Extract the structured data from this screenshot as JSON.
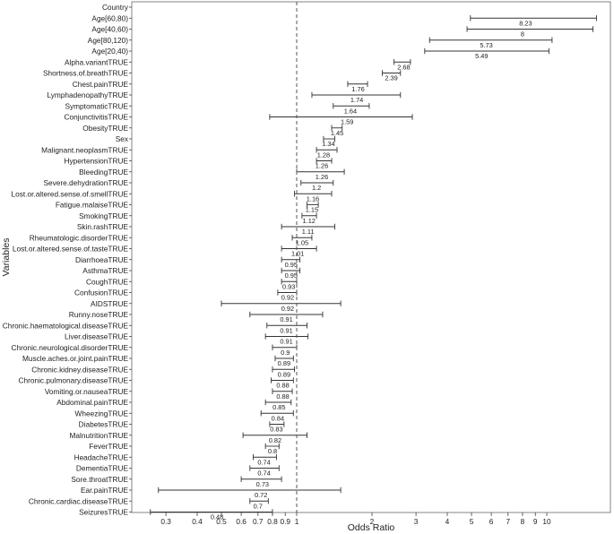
{
  "chart_data": {
    "type": "forest",
    "xlabel": "Odds Ratio",
    "ylabel": "Variables",
    "x_scale": "log",
    "xlim": [
      0.22,
      18
    ],
    "reference_line": 1,
    "grid": false,
    "x_ticks": [
      {
        "value": 0.3,
        "label": "0.3"
      },
      {
        "value": 0.4,
        "label": "0.4"
      },
      {
        "value": 0.5,
        "label": "0.5"
      },
      {
        "value": 0.6,
        "label": "0.6"
      },
      {
        "value": 0.7,
        "label": "0.7"
      },
      {
        "value": 0.8,
        "label": "0.8"
      },
      {
        "value": 0.9,
        "label": "0.9"
      },
      {
        "value": 1,
        "label": "1"
      },
      {
        "value": 2,
        "label": "2"
      },
      {
        "value": 3,
        "label": "3"
      },
      {
        "value": 4,
        "label": "4"
      },
      {
        "value": 5,
        "label": "5"
      },
      {
        "value": 6,
        "label": "6"
      },
      {
        "value": 7,
        "label": "7"
      },
      {
        "value": 8,
        "label": "8"
      },
      {
        "value": 9,
        "label": "9"
      },
      {
        "value": 10,
        "label": "10"
      }
    ],
    "rows": [
      {
        "label": "Country",
        "or": null,
        "lo": null,
        "hi": null,
        "or_label": ""
      },
      {
        "label": "Age[60,80)",
        "or": 8.23,
        "lo": 4.95,
        "hi": 15.8,
        "or_label": "8.23"
      },
      {
        "label": "Age[40,60)",
        "or": 8,
        "lo": 4.8,
        "hi": 15.3,
        "or_label": "8"
      },
      {
        "label": "Age[80,120)",
        "or": 5.73,
        "lo": 3.4,
        "hi": 10.5,
        "or_label": "5.73"
      },
      {
        "label": "Age[20,40)",
        "or": 5.49,
        "lo": 3.25,
        "hi": 10.2,
        "or_label": "5.49"
      },
      {
        "label": "Alpha.variantTRUE",
        "or": 2.68,
        "lo": 2.45,
        "hi": 2.85,
        "or_label": "2.68"
      },
      {
        "label": "Shortness.of.breathTRUE",
        "or": 2.39,
        "lo": 2.2,
        "hi": 2.6,
        "or_label": "2.39"
      },
      {
        "label": "Chest.painTRUE",
        "or": 1.76,
        "lo": 1.6,
        "hi": 1.92,
        "or_label": "1.76"
      },
      {
        "label": "LymphadenopathyTRUE",
        "or": 1.74,
        "lo": 1.15,
        "hi": 2.6,
        "or_label": "1.74"
      },
      {
        "label": "SymptomaticTRUE",
        "or": 1.64,
        "lo": 1.4,
        "hi": 1.95,
        "or_label": "1.64"
      },
      {
        "label": "ConjunctivitisTRUE",
        "or": 1.59,
        "lo": 0.78,
        "hi": 2.9,
        "or_label": "1.59"
      },
      {
        "label": "ObesityTRUE",
        "or": 1.45,
        "lo": 1.38,
        "hi": 1.52,
        "or_label": "1.45"
      },
      {
        "label": "Sex",
        "or": 1.34,
        "lo": 1.28,
        "hi": 1.42,
        "or_label": "1.34"
      },
      {
        "label": "Malignant.neoplasmTRUE",
        "or": 1.28,
        "lo": 1.2,
        "hi": 1.45,
        "or_label": "1.28"
      },
      {
        "label": "HypertensionTRUE",
        "or": 1.26,
        "lo": 1.2,
        "hi": 1.38,
        "or_label": "1.26"
      },
      {
        "label": "BleedingTRUE",
        "or": 1.26,
        "lo": 1.0,
        "hi": 1.55,
        "or_label": "1.26"
      },
      {
        "label": "Severe.dehydrationTRUE",
        "or": 1.2,
        "lo": 1.04,
        "hi": 1.4,
        "or_label": "1.2"
      },
      {
        "label": "Lost.or.altered.sense.of.smellTRUE",
        "or": 1.16,
        "lo": 0.98,
        "hi": 1.38,
        "or_label": "1.16"
      },
      {
        "label": "Fatigue.malaiseTRUE",
        "or": 1.15,
        "lo": 1.1,
        "hi": 1.22,
        "or_label": "1.15"
      },
      {
        "label": "SmokingTRUE",
        "or": 1.12,
        "lo": 1.05,
        "hi": 1.2,
        "or_label": "1.12"
      },
      {
        "label": "Skin.rashTRUE",
        "or": 1.11,
        "lo": 0.87,
        "hi": 1.42,
        "or_label": "1.11"
      },
      {
        "label": "Rheumatologic.disorderTRUE",
        "or": 1.05,
        "lo": 0.96,
        "hi": 1.15,
        "or_label": "1.05"
      },
      {
        "label": "Lost.or.altered.sense.of.tasteTRUE",
        "or": 1.01,
        "lo": 0.87,
        "hi": 1.2,
        "or_label": "1.01"
      },
      {
        "label": "DiarrhoeaTRUE",
        "or": 0.95,
        "lo": 0.87,
        "hi": 1.03,
        "or_label": "0.95"
      },
      {
        "label": "AsthmaTRUE",
        "or": 0.95,
        "lo": 0.87,
        "hi": 1.03,
        "or_label": "0.95"
      },
      {
        "label": "CoughTRUE",
        "or": 0.93,
        "lo": 0.87,
        "hi": 1.0,
        "or_label": "0.93"
      },
      {
        "label": "ConfusionTRUE",
        "or": 0.92,
        "lo": 0.84,
        "hi": 1.0,
        "or_label": "0.92"
      },
      {
        "label": "AIDSTRUE",
        "or": 0.92,
        "lo": 0.5,
        "hi": 1.5,
        "or_label": "0.92"
      },
      {
        "label": "Runny.noseTRUE",
        "or": 0.91,
        "lo": 0.65,
        "hi": 1.27,
        "or_label": "0.91"
      },
      {
        "label": "Chronic.haematological.diseaseTRUE",
        "or": 0.91,
        "lo": 0.76,
        "hi": 1.1,
        "or_label": "0.91"
      },
      {
        "label": "Liver.diseaseTRUE",
        "or": 0.91,
        "lo": 0.75,
        "hi": 1.11,
        "or_label": "0.91"
      },
      {
        "label": "Chronic.neurological.disorderTRUE",
        "or": 0.9,
        "lo": 0.8,
        "hi": 1.0,
        "or_label": "0.9"
      },
      {
        "label": "Muscle.aches.or.joint.painTRUE",
        "or": 0.89,
        "lo": 0.82,
        "hi": 0.97,
        "or_label": "0.89"
      },
      {
        "label": "Chronic.kidney.diseaseTRUE",
        "or": 0.89,
        "lo": 0.8,
        "hi": 0.98,
        "or_label": "0.89"
      },
      {
        "label": "Chronic.pulmonary.diseaseTRUE",
        "or": 0.88,
        "lo": 0.79,
        "hi": 0.97,
        "or_label": "0.88"
      },
      {
        "label": "Vomiting.or.nauseaTRUE",
        "or": 0.88,
        "lo": 0.8,
        "hi": 0.96,
        "or_label": "0.88"
      },
      {
        "label": "Abdominal.painTRUE",
        "or": 0.85,
        "lo": 0.75,
        "hi": 0.95,
        "or_label": "0.85"
      },
      {
        "label": "WheezingTRUE",
        "or": 0.84,
        "lo": 0.72,
        "hi": 0.97,
        "or_label": "0.84"
      },
      {
        "label": "DiabetesTRUE",
        "or": 0.83,
        "lo": 0.78,
        "hi": 0.89,
        "or_label": "0.83"
      },
      {
        "label": "MalnutritionTRUE",
        "or": 0.82,
        "lo": 0.61,
        "hi": 1.1,
        "or_label": "0.82"
      },
      {
        "label": "FeverTRUE",
        "or": 0.8,
        "lo": 0.75,
        "hi": 0.85,
        "or_label": "0.8"
      },
      {
        "label": "HeadacheTRUE",
        "or": 0.74,
        "lo": 0.67,
        "hi": 0.83,
        "or_label": "0.74"
      },
      {
        "label": "DementiaTRUE",
        "or": 0.74,
        "lo": 0.65,
        "hi": 0.85,
        "or_label": "0.74"
      },
      {
        "label": "Sore.throatTRUE",
        "or": 0.73,
        "lo": 0.6,
        "hi": 0.87,
        "or_label": "0.73"
      },
      {
        "label": "Ear.painTRUE",
        "or": 0.72,
        "lo": 0.28,
        "hi": 1.5,
        "or_label": "0.72"
      },
      {
        "label": "Chronic.cardiac.diseaseTRUE",
        "or": 0.7,
        "lo": 0.65,
        "hi": 0.77,
        "or_label": "0.7"
      },
      {
        "label": "SeizuresTRUE",
        "or": 0.48,
        "lo": 0.26,
        "hi": 0.8,
        "or_label": "0.48"
      }
    ]
  }
}
